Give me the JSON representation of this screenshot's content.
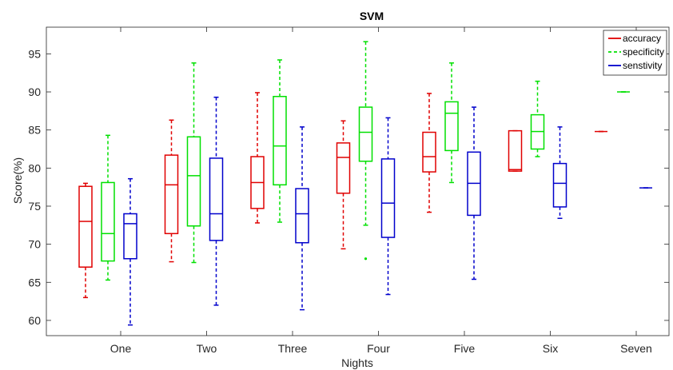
{
  "chart_data": {
    "type": "box",
    "title": "SVM",
    "xlabel": "Nights",
    "ylabel": "Score(%)",
    "ylim": [
      58,
      98.5
    ],
    "yticks": [
      60,
      65,
      70,
      75,
      80,
      85,
      90,
      95
    ],
    "categories": [
      "One",
      "Two",
      "Three",
      "Four",
      "Five",
      "Six",
      "Seven"
    ],
    "legend_position": "top-right",
    "series": [
      {
        "name": "accuracy",
        "color": "#e00000",
        "line_style": "solid",
        "boxes": [
          {
            "min": 63.0,
            "q1": 67.0,
            "median": 73.0,
            "q3": 77.6,
            "max": 78.0,
            "outliers": []
          },
          {
            "min": 67.7,
            "q1": 71.4,
            "median": 77.8,
            "q3": 81.7,
            "max": 86.3,
            "outliers": []
          },
          {
            "min": 72.8,
            "q1": 74.7,
            "median": 78.1,
            "q3": 81.5,
            "max": 89.9,
            "outliers": []
          },
          {
            "min": 69.4,
            "q1": 76.7,
            "median": 81.4,
            "q3": 83.3,
            "max": 86.2,
            "outliers": []
          },
          {
            "min": 74.2,
            "q1": 79.5,
            "median": 81.5,
            "q3": 84.7,
            "max": 89.8,
            "outliers": []
          },
          {
            "min": 79.6,
            "q1": 79.6,
            "median": 79.8,
            "q3": 84.9,
            "max": 84.9,
            "outliers": []
          },
          {
            "min": 84.8,
            "q1": 84.8,
            "median": 84.8,
            "q3": 84.8,
            "max": 84.8,
            "outliers": []
          }
        ]
      },
      {
        "name": "specificity",
        "color": "#00e000",
        "line_style": "dashed",
        "boxes": [
          {
            "min": 65.3,
            "q1": 67.8,
            "median": 71.4,
            "q3": 78.1,
            "max": 84.3,
            "outliers": []
          },
          {
            "min": 67.6,
            "q1": 72.4,
            "median": 79.0,
            "q3": 84.1,
            "max": 93.8,
            "outliers": []
          },
          {
            "min": 72.9,
            "q1": 77.8,
            "median": 82.9,
            "q3": 89.4,
            "max": 94.2,
            "outliers": []
          },
          {
            "min": 72.5,
            "q1": 80.9,
            "median": 84.7,
            "q3": 88.0,
            "max": 96.6,
            "outliers": [
              68.1
            ]
          },
          {
            "min": 78.1,
            "q1": 82.3,
            "median": 87.2,
            "q3": 88.7,
            "max": 93.8,
            "outliers": []
          },
          {
            "min": 81.5,
            "q1": 82.5,
            "median": 84.8,
            "q3": 87.0,
            "max": 91.4,
            "outliers": []
          },
          {
            "min": 90.0,
            "q1": 90.0,
            "median": 90.0,
            "q3": 90.0,
            "max": 90.0,
            "outliers": []
          }
        ]
      },
      {
        "name": "senstivity",
        "color": "#0000cc",
        "line_style": "solid",
        "boxes": [
          {
            "min": 59.4,
            "q1": 68.1,
            "median": 72.7,
            "q3": 74.0,
            "max": 78.6,
            "outliers": []
          },
          {
            "min": 62.0,
            "q1": 70.5,
            "median": 74.0,
            "q3": 81.3,
            "max": 89.3,
            "outliers": []
          },
          {
            "min": 61.4,
            "q1": 70.2,
            "median": 74.0,
            "q3": 77.3,
            "max": 85.4,
            "outliers": []
          },
          {
            "min": 63.4,
            "q1": 70.9,
            "median": 75.4,
            "q3": 81.2,
            "max": 86.6,
            "outliers": []
          },
          {
            "min": 65.4,
            "q1": 73.8,
            "median": 78.0,
            "q3": 82.1,
            "max": 88.0,
            "outliers": []
          },
          {
            "min": 73.4,
            "q1": 74.9,
            "median": 78.0,
            "q3": 80.6,
            "max": 85.4,
            "outliers": []
          },
          {
            "min": 77.4,
            "q1": 77.4,
            "median": 77.4,
            "q3": 77.4,
            "max": 77.4,
            "outliers": []
          }
        ]
      }
    ]
  }
}
